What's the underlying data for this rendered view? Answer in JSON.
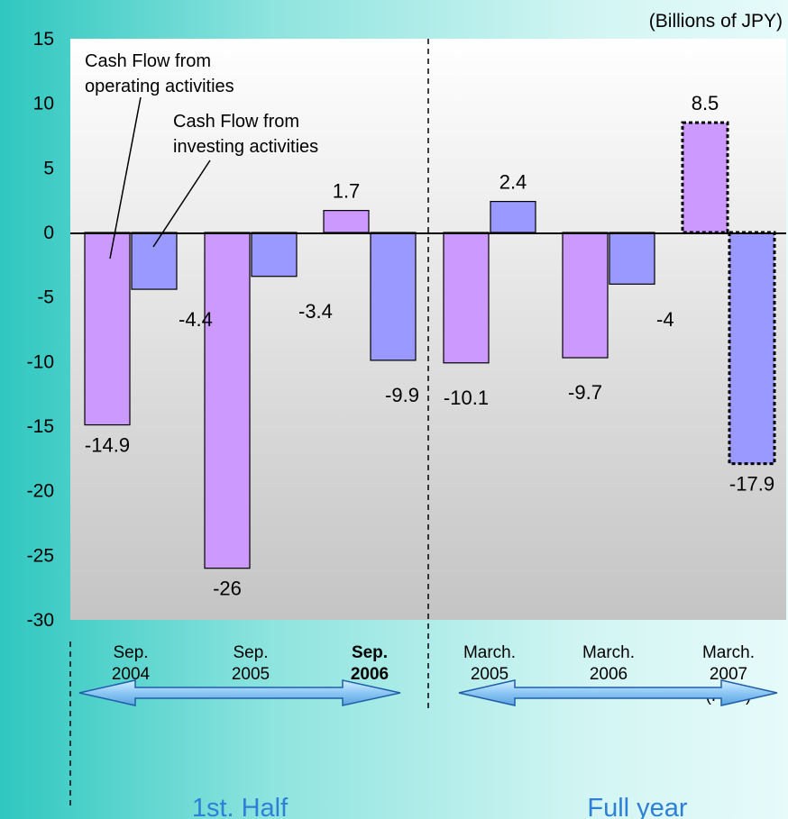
{
  "chart_data": {
    "type": "bar",
    "unit_label": "(Billions of JPY)",
    "ylim": [
      -30,
      15
    ],
    "yticks": [
      15,
      10,
      5,
      0,
      -5,
      -10,
      -15,
      -20,
      -25,
      -30
    ],
    "categories": [
      {
        "lines": [
          "Sep.",
          "2004"
        ],
        "bold": false
      },
      {
        "lines": [
          "Sep.",
          "2005"
        ],
        "bold": false
      },
      {
        "lines": [
          "Sep.",
          "2006"
        ],
        "bold": true
      },
      {
        "lines": [
          "March.",
          "2005"
        ],
        "bold": false
      },
      {
        "lines": [
          "March.",
          "2006"
        ],
        "bold": false
      },
      {
        "lines": [
          "March.",
          "2007",
          "(Plan)"
        ],
        "bold": false
      }
    ],
    "series": [
      {
        "name": "Cash Flow from operating activities",
        "name_lines": [
          "Cash Flow from",
          "operating activities"
        ],
        "color": "#cc99ff",
        "values": [
          -14.9,
          -26,
          1.7,
          -10.1,
          -9.7,
          8.5
        ],
        "labels": [
          "-14.9",
          "-26",
          "1.7",
          "-10.1",
          "-9.7",
          "8.5"
        ]
      },
      {
        "name": "Cash Flow from investing activities",
        "name_lines": [
          "Cash Flow from",
          "investing activities"
        ],
        "color": "#9999ff",
        "values": [
          -4.4,
          -3.4,
          -9.9,
          2.4,
          -4,
          -17.9
        ],
        "labels": [
          "-4.4",
          "-3.4",
          "-9.9",
          "2.4",
          "-4",
          "-17.9"
        ]
      }
    ],
    "plan_category_index": 5,
    "groups": [
      {
        "label": "1st. Half",
        "color": "#2e7fd6"
      },
      {
        "label": "Full year",
        "color": "#2e7fd6"
      }
    ],
    "grid": false
  }
}
